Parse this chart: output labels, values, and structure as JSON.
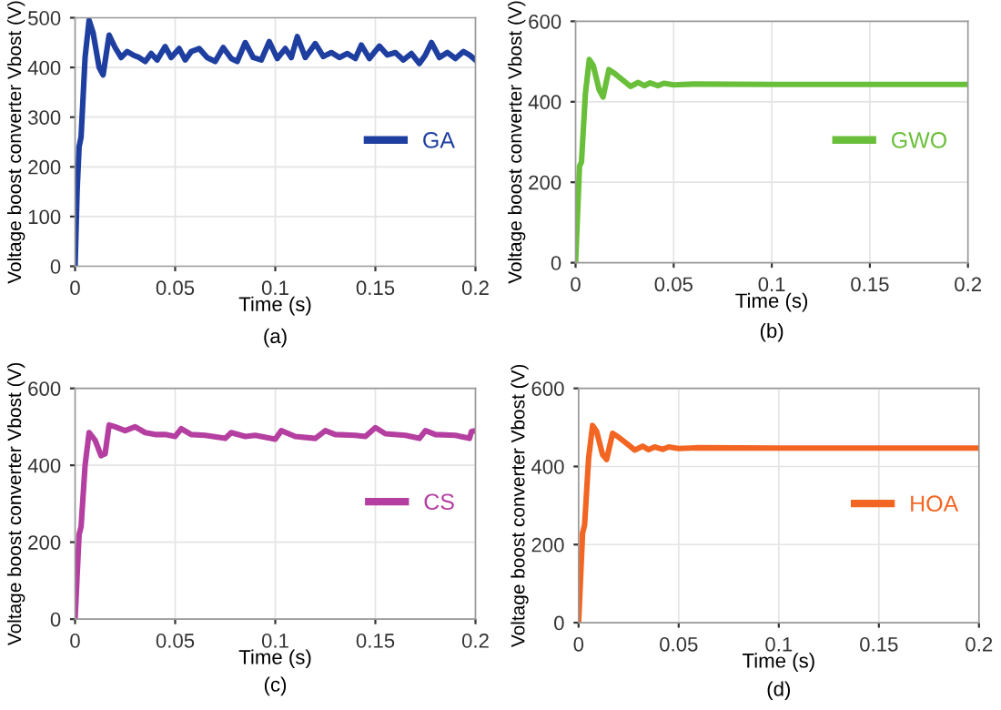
{
  "chart_data": [
    {
      "type": "line",
      "xlabel": "Time (s)",
      "ylabel": "Voltage boost converter Vbost (V)",
      "annotations": [
        "(a)"
      ],
      "xlim": [
        0,
        0.2
      ],
      "ylim": [
        0,
        500
      ],
      "xticks": [
        0,
        0.05,
        0.1,
        0.15,
        0.2
      ],
      "yticks": [
        0,
        100,
        200,
        300,
        400,
        500
      ],
      "grid": true,
      "legend": "center right",
      "series": [
        {
          "name": "GA",
          "color": "#1f3fa0",
          "x": [
            0,
            0.001,
            0.002,
            0.003,
            0.005,
            0.007,
            0.009,
            0.012,
            0.014,
            0.017,
            0.02,
            0.023,
            0.026,
            0.029,
            0.032,
            0.035,
            0.038,
            0.041,
            0.045,
            0.048,
            0.052,
            0.055,
            0.058,
            0.062,
            0.066,
            0.07,
            0.074,
            0.078,
            0.081,
            0.085,
            0.089,
            0.093,
            0.097,
            0.101,
            0.105,
            0.108,
            0.111,
            0.115,
            0.12,
            0.124,
            0.128,
            0.132,
            0.136,
            0.14,
            0.143,
            0.147,
            0.152,
            0.156,
            0.16,
            0.164,
            0.168,
            0.172,
            0.175,
            0.178,
            0.182,
            0.186,
            0.19,
            0.194,
            0.197,
            0.2
          ],
          "values": [
            0,
            150,
            240,
            260,
            420,
            495,
            470,
            400,
            385,
            465,
            440,
            420,
            432,
            425,
            420,
            412,
            428,
            415,
            442,
            420,
            438,
            415,
            432,
            438,
            420,
            412,
            440,
            418,
            412,
            450,
            420,
            415,
            452,
            418,
            438,
            420,
            462,
            420,
            448,
            422,
            430,
            420,
            428,
            418,
            445,
            418,
            443,
            425,
            430,
            415,
            428,
            408,
            425,
            450,
            420,
            430,
            418,
            432,
            425,
            415
          ]
        }
      ]
    },
    {
      "type": "line",
      "xlabel": "Time (s)",
      "ylabel": "Voltage boost converter Vbost (V)",
      "annotations": [
        "(b)"
      ],
      "xlim": [
        0,
        0.2
      ],
      "ylim": [
        0,
        600
      ],
      "xticks": [
        0,
        0.05,
        0.1,
        0.15,
        0.2
      ],
      "yticks": [
        0,
        200,
        400,
        600
      ],
      "grid": true,
      "legend": "center right",
      "series": [
        {
          "name": "GWO",
          "color": "#6abf3a",
          "x": [
            0,
            0.002,
            0.003,
            0.005,
            0.007,
            0.009,
            0.012,
            0.014,
            0.017,
            0.02,
            0.025,
            0.028,
            0.032,
            0.035,
            0.038,
            0.042,
            0.045,
            0.05,
            0.06,
            0.1,
            0.2
          ],
          "values": [
            0,
            240,
            250,
            420,
            505,
            490,
            430,
            412,
            480,
            470,
            450,
            438,
            448,
            440,
            447,
            440,
            446,
            442,
            444,
            443,
            443
          ]
        }
      ]
    },
    {
      "type": "line",
      "xlabel": "Time (s)",
      "ylabel": "Voltage boost converter Vbost (V)",
      "annotations": [
        "(c)"
      ],
      "xlim": [
        0,
        0.2
      ],
      "ylim": [
        0,
        600
      ],
      "xticks": [
        0,
        0.05,
        0.1,
        0.15,
        0.2
      ],
      "yticks": [
        0,
        200,
        400,
        600
      ],
      "grid": true,
      "legend": "center right",
      "series": [
        {
          "name": "CS",
          "color": "#b43fa0",
          "x": [
            0,
            0.002,
            0.003,
            0.005,
            0.007,
            0.01,
            0.013,
            0.015,
            0.017,
            0.02,
            0.025,
            0.03,
            0.035,
            0.04,
            0.045,
            0.05,
            0.053,
            0.058,
            0.065,
            0.075,
            0.078,
            0.085,
            0.09,
            0.1,
            0.103,
            0.11,
            0.12,
            0.125,
            0.13,
            0.14,
            0.145,
            0.15,
            0.155,
            0.165,
            0.172,
            0.175,
            0.18,
            0.19,
            0.197,
            0.198,
            0.2
          ],
          "values": [
            0,
            220,
            240,
            400,
            485,
            465,
            425,
            430,
            505,
            500,
            490,
            500,
            485,
            480,
            480,
            475,
            495,
            480,
            478,
            470,
            485,
            475,
            478,
            468,
            490,
            475,
            470,
            490,
            480,
            478,
            475,
            498,
            482,
            478,
            470,
            490,
            480,
            478,
            470,
            488,
            490
          ]
        }
      ]
    },
    {
      "type": "line",
      "xlabel": "Time (s)",
      "ylabel": "Voltage boost converter Vbost (V)",
      "annotations": [
        "(d)"
      ],
      "xlim": [
        0,
        0.2
      ],
      "ylim": [
        0,
        600
      ],
      "xticks": [
        0,
        0.05,
        0.1,
        0.15,
        0.2
      ],
      "yticks": [
        0,
        200,
        400,
        600
      ],
      "grid": true,
      "legend": "center right",
      "series": [
        {
          "name": "HOA",
          "color": "#f26522",
          "x": [
            0,
            0.002,
            0.003,
            0.005,
            0.007,
            0.009,
            0.012,
            0.014,
            0.017,
            0.02,
            0.025,
            0.028,
            0.032,
            0.035,
            0.038,
            0.042,
            0.045,
            0.05,
            0.06,
            0.1,
            0.2
          ],
          "values": [
            0,
            230,
            250,
            420,
            505,
            490,
            430,
            418,
            485,
            475,
            455,
            442,
            452,
            443,
            450,
            444,
            450,
            446,
            448,
            447,
            447
          ]
        }
      ]
    }
  ]
}
